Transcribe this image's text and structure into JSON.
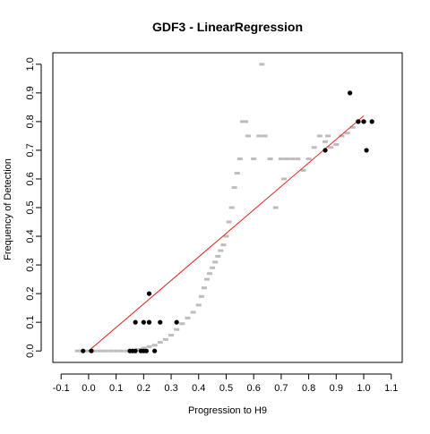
{
  "chart_data": {
    "type": "scatter",
    "title": "GDF3 - LinearRegression",
    "xlabel": "Progression to H9",
    "ylabel": "Frequency of Detection",
    "xlim": [
      -0.13,
      1.14
    ],
    "ylim": [
      -0.04,
      1.04
    ],
    "xticks": [
      "-0.1",
      "0.0",
      "0.1",
      "0.2",
      "0.3",
      "0.4",
      "0.5",
      "0.6",
      "0.7",
      "0.8",
      "0.9",
      "1.0",
      "1.1"
    ],
    "yticks": [
      "0.0",
      "0.1",
      "0.2",
      "0.3",
      "0.4",
      "0.5",
      "0.6",
      "0.7",
      "0.8",
      "0.9",
      "1.0"
    ],
    "grid": false,
    "legend": "none",
    "colors": {
      "observed": "#000000",
      "background": "#bdbdbd",
      "fit": "#e0241b",
      "axis": "#000000"
    },
    "series": [
      {
        "role": "background",
        "points": [
          [
            -0.04,
            0.0
          ],
          [
            -0.02,
            0.0
          ],
          [
            0.0,
            0.0
          ],
          [
            0.02,
            0.0
          ],
          [
            0.04,
            0.0
          ],
          [
            0.06,
            0.0
          ],
          [
            0.08,
            0.0
          ],
          [
            0.1,
            0.0
          ],
          [
            0.12,
            0.0
          ],
          [
            0.14,
            0.0
          ],
          [
            0.16,
            0.0
          ],
          [
            0.18,
            0.005
          ],
          [
            0.2,
            0.01
          ],
          [
            0.22,
            0.015
          ],
          [
            0.24,
            0.02
          ],
          [
            0.26,
            0.03
          ],
          [
            0.28,
            0.04
          ],
          [
            0.3,
            0.055
          ],
          [
            0.32,
            0.075
          ],
          [
            0.34,
            0.095
          ],
          [
            0.36,
            0.115
          ],
          [
            0.38,
            0.135
          ],
          [
            0.4,
            0.16
          ],
          [
            0.41,
            0.19
          ],
          [
            0.42,
            0.22
          ],
          [
            0.43,
            0.25
          ],
          [
            0.44,
            0.27
          ],
          [
            0.45,
            0.29
          ],
          [
            0.46,
            0.31
          ],
          [
            0.47,
            0.33
          ],
          [
            0.48,
            0.35
          ],
          [
            0.49,
            0.37
          ],
          [
            0.5,
            0.4
          ],
          [
            0.51,
            0.45
          ],
          [
            0.52,
            0.5
          ],
          [
            0.53,
            0.57
          ],
          [
            0.54,
            0.62
          ],
          [
            0.55,
            0.67
          ],
          [
            0.56,
            0.8
          ],
          [
            0.57,
            0.8
          ],
          [
            0.58,
            0.75
          ],
          [
            0.6,
            0.67
          ],
          [
            0.62,
            0.75
          ],
          [
            0.63,
            1.0
          ],
          [
            0.64,
            0.75
          ],
          [
            0.66,
            0.67
          ],
          [
            0.68,
            0.5
          ],
          [
            0.7,
            0.67
          ],
          [
            0.71,
            0.6
          ],
          [
            0.72,
            0.67
          ],
          [
            0.74,
            0.67
          ],
          [
            0.76,
            0.67
          ],
          [
            0.78,
            0.63
          ],
          [
            0.8,
            0.67
          ],
          [
            0.82,
            0.71
          ],
          [
            0.84,
            0.75
          ],
          [
            0.86,
            0.73
          ],
          [
            0.87,
            0.75
          ],
          [
            0.88,
            0.71
          ],
          [
            0.9,
            0.72
          ],
          [
            0.92,
            0.75
          ],
          [
            0.94,
            0.76
          ],
          [
            0.96,
            0.78
          ],
          [
            0.98,
            0.8
          ],
          [
            1.0,
            0.8
          ]
        ]
      },
      {
        "role": "observed",
        "points": [
          [
            -0.02,
            0.0
          ],
          [
            0.01,
            0.0
          ],
          [
            0.15,
            0.0
          ],
          [
            0.16,
            0.0
          ],
          [
            0.17,
            0.0
          ],
          [
            0.19,
            0.0
          ],
          [
            0.2,
            0.0
          ],
          [
            0.21,
            0.0
          ],
          [
            0.24,
            0.0
          ],
          [
            0.17,
            0.1
          ],
          [
            0.2,
            0.1
          ],
          [
            0.22,
            0.1
          ],
          [
            0.26,
            0.1
          ],
          [
            0.32,
            0.1
          ],
          [
            0.22,
            0.2
          ],
          [
            0.86,
            0.7
          ],
          [
            0.95,
            0.9
          ],
          [
            0.98,
            0.8
          ],
          [
            1.0,
            0.8
          ],
          [
            1.01,
            0.7
          ],
          [
            1.03,
            0.8
          ]
        ]
      },
      {
        "role": "fit",
        "line": [
          [
            0.0,
            0.0
          ],
          [
            1.0,
            0.82
          ]
        ]
      }
    ]
  }
}
